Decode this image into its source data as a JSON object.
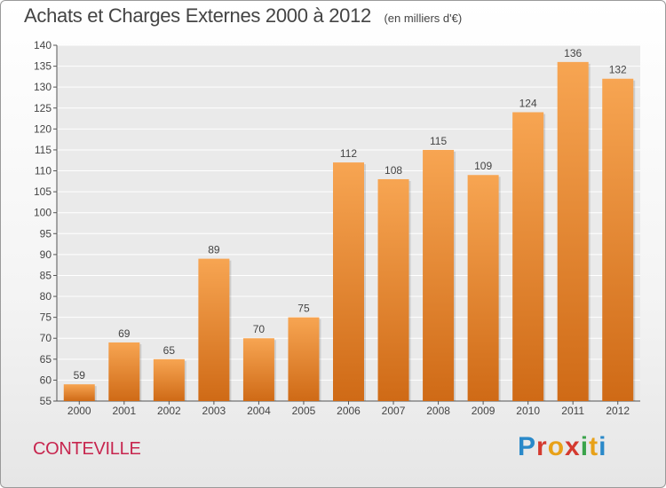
{
  "header": {
    "title": "Achats et Charges Externes 2000 à 2012",
    "unit": "(en milliers d'€)"
  },
  "footer": {
    "place": "CONTEVILLE",
    "logo_text": "Proxiti"
  },
  "colors": {
    "bar_light": "#f7a552",
    "bar_dark": "#cf6a16",
    "place": "#c7254e",
    "axis": "#555555"
  },
  "chart_data": {
    "type": "bar",
    "categories": [
      "2000",
      "2001",
      "2002",
      "2003",
      "2004",
      "2005",
      "2006",
      "2007",
      "2008",
      "2009",
      "2010",
      "2011",
      "2012"
    ],
    "values": [
      59,
      69,
      65,
      89,
      70,
      75,
      112,
      108,
      115,
      109,
      124,
      136,
      132
    ],
    "data_labels": [
      "59",
      "69",
      "65",
      "89",
      "70",
      "75",
      "112",
      "108",
      "115",
      "109",
      "124",
      "136",
      "132"
    ],
    "ylim": [
      55,
      140
    ],
    "yticks": [
      55,
      60,
      65,
      70,
      75,
      80,
      85,
      90,
      95,
      100,
      105,
      110,
      115,
      120,
      125,
      130,
      135,
      140
    ],
    "title": "Achats et Charges Externes 2000 à 2012",
    "xlabel": "",
    "ylabel": "",
    "grid": true
  }
}
